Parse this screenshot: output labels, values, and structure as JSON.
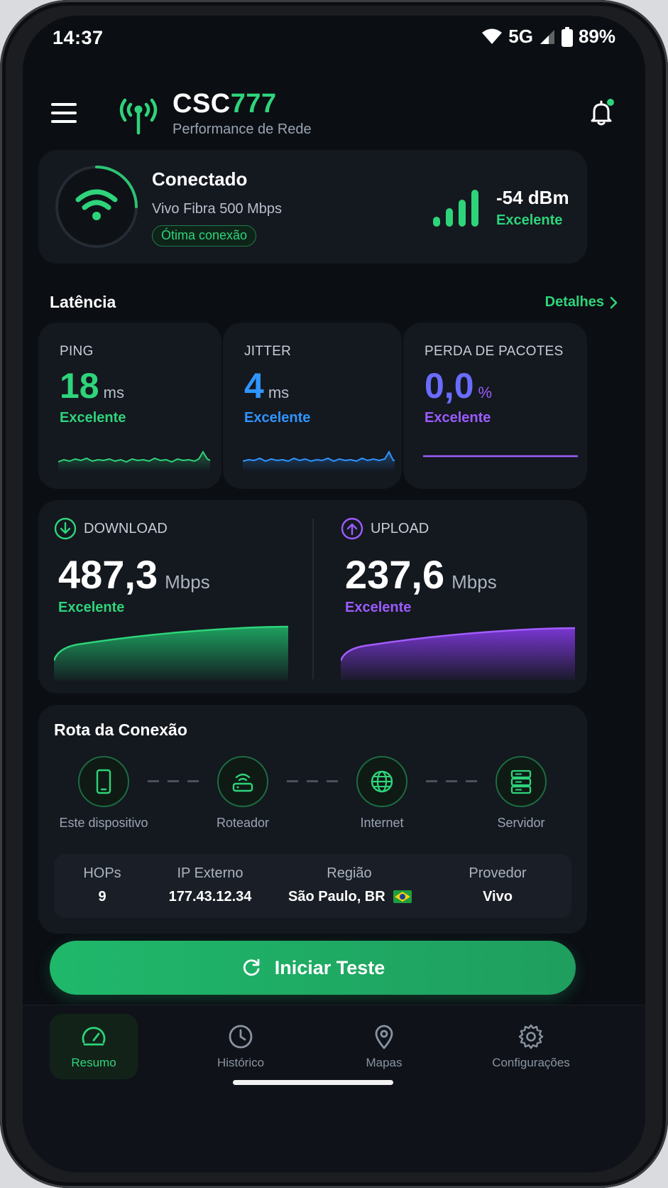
{
  "status_bar": {
    "time": "14:37",
    "network": "5G",
    "battery": "89%",
    "icons": [
      "wifi-icon",
      "cell-signal-icon",
      "battery-icon"
    ]
  },
  "header": {
    "brand_main": "CSC",
    "brand_accent": "777",
    "subtitle": "Performance de Rede",
    "icons": [
      "menu-icon",
      "antenna-icon",
      "bell-icon"
    ],
    "has_notification": true
  },
  "connection": {
    "title": "Conectado",
    "plan": "Vivo Fibra 500 Mbps",
    "quality_badge": "Ótima conexão",
    "signal_dbm": "-54 dBm",
    "signal_status": "Excelente",
    "signal_bars_active": 4,
    "signal_bars_total": 4
  },
  "latency": {
    "title": "Latência",
    "details_link": "Detalhes",
    "ping": {
      "label": "PING",
      "value": "18",
      "unit": "ms",
      "status": "Excelente"
    },
    "jitter": {
      "label": "JITTER",
      "value": "4",
      "unit": "ms",
      "status": "Excelente"
    },
    "packet_loss": {
      "label": "PERDA DE PACOTES",
      "value": "0,0",
      "unit": "%",
      "status": "Excelente"
    }
  },
  "speed": {
    "download": {
      "label": "DOWNLOAD",
      "value": "487,3",
      "unit": "Mbps",
      "status": "Excelente"
    },
    "upload": {
      "label": "UPLOAD",
      "value": "237,6",
      "unit": "Mbps",
      "status": "Excelente"
    }
  },
  "route": {
    "title": "Rota da Conexão",
    "nodes": [
      {
        "label": "Este dispositivo",
        "icon": "smartphone-icon"
      },
      {
        "label": "Roteador",
        "icon": "router-icon"
      },
      {
        "label": "Internet",
        "icon": "globe-icon"
      },
      {
        "label": "Servidor",
        "icon": "server-icon"
      }
    ],
    "stats": [
      {
        "label": "HOPs",
        "value": "9"
      },
      {
        "label": "IP Externo",
        "value": "177.43.12.34"
      },
      {
        "label": "Região",
        "value": "São Paulo, BR"
      },
      {
        "label": "Provedor",
        "value": "Vivo"
      }
    ]
  },
  "actions": {
    "start_test": "Iniciar Teste"
  },
  "bottom_nav": [
    {
      "label": "Resumo",
      "icon": "speedometer-icon",
      "active": true
    },
    {
      "label": "Histórico",
      "icon": "clock-icon",
      "active": false
    },
    {
      "label": "Mapas",
      "icon": "map-pin-icon",
      "active": false
    },
    {
      "label": "Configurações",
      "icon": "gear-icon",
      "active": false
    }
  ],
  "colors": {
    "accent_green": "#2ed47a",
    "accent_blue": "#2f95ff",
    "accent_purple": "#9b5cff",
    "accent_indigo": "#6a6cff",
    "background": "#0b0e13",
    "card": "#14181f"
  }
}
